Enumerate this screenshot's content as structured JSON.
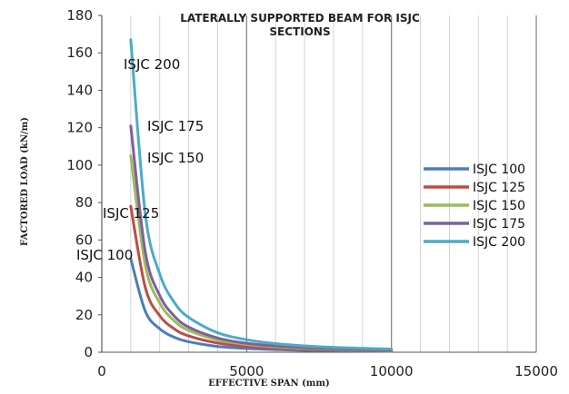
{
  "chart_data": {
    "type": "line",
    "title_line1": "LATERALLY SUPPORTED BEAM FOR ISJC",
    "title_line2": "SECTIONS",
    "xlabel": "EFFECTIVE SPAN (mm)",
    "ylabel": "FACTORED  LOAD  (kN/m)",
    "xlim": [
      0,
      15000
    ],
    "ylim": [
      0,
      180
    ],
    "x_ticks": [
      0,
      5000,
      10000,
      15000
    ],
    "y_ticks": [
      0,
      20,
      40,
      60,
      80,
      100,
      120,
      140,
      160,
      180
    ],
    "x_tick_labels": [
      "0",
      "5000",
      "10000",
      "15000"
    ],
    "y_tick_labels": [
      "0",
      "20",
      "40",
      "60",
      "80",
      "100",
      "120",
      "140",
      "160",
      "180"
    ],
    "grid": "vertical major and minor gridlines",
    "legend_position": "right",
    "x": [
      1000,
      1500,
      2000,
      2500,
      3000,
      4000,
      5000,
      6000,
      7000,
      8000,
      9000,
      10000
    ],
    "series": [
      {
        "name": "ISJC 100",
        "color": "#4a7ebb",
        "values": [
          50,
          22,
          12.5,
          8,
          5.6,
          3.1,
          2,
          1.4,
          1,
          0.8,
          0.6,
          0.5
        ]
      },
      {
        "name": "ISJC 125",
        "color": "#be4b48",
        "values": [
          78,
          34.7,
          19.5,
          12.5,
          8.7,
          4.9,
          3.1,
          2.2,
          1.6,
          1.2,
          1,
          0.8
        ]
      },
      {
        "name": "ISJC 150",
        "color": "#9bbb59",
        "values": [
          105,
          46.7,
          26.3,
          16.8,
          11.7,
          6.6,
          4.2,
          2.9,
          2.1,
          1.6,
          1.3,
          1.05
        ]
      },
      {
        "name": "ISJC 175",
        "color": "#7d60a0",
        "values": [
          121,
          53.8,
          30.3,
          19.4,
          13.4,
          7.6,
          4.8,
          3.4,
          2.5,
          1.9,
          1.5,
          1.2
        ]
      },
      {
        "name": "ISJC 200",
        "color": "#4bacc6",
        "values": [
          167,
          74.2,
          41.8,
          26.7,
          18.6,
          10.4,
          6.7,
          4.6,
          3.4,
          2.6,
          2.1,
          1.7
        ]
      }
    ],
    "annotations": [
      "ISJC 200",
      "ISJC 175",
      "ISJC 150",
      "ISJC 125",
      "ISJC 100"
    ]
  }
}
